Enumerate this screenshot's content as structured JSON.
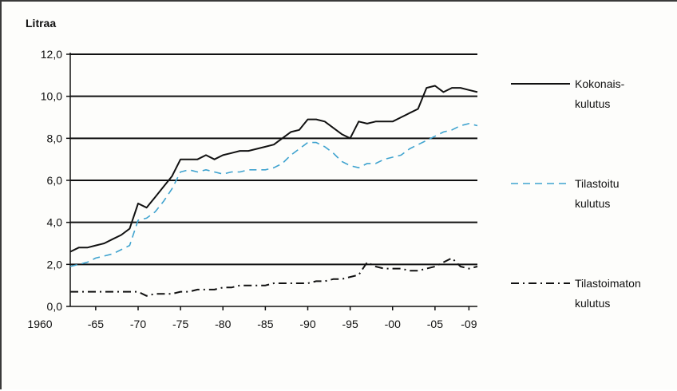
{
  "chart_data": {
    "type": "line",
    "ylabel": "Litraa",
    "ylim": [
      0,
      12
    ],
    "yticks": [
      "0,0",
      "2,0",
      "4,0",
      "6,0",
      "8,0",
      "10,0",
      "12,0"
    ],
    "xlim": [
      1962,
      2010
    ],
    "xticks": [
      {
        "x": 1960,
        "label": "1960"
      },
      {
        "x": 1965,
        "label": "-65"
      },
      {
        "x": 1970,
        "label": "-70"
      },
      {
        "x": 1975,
        "label": "-75"
      },
      {
        "x": 1980,
        "label": "-80"
      },
      {
        "x": 1985,
        "label": "-85"
      },
      {
        "x": 1990,
        "label": "-90"
      },
      {
        "x": 1995,
        "label": "-95"
      },
      {
        "x": 2000,
        "label": "-00"
      },
      {
        "x": 2005,
        "label": "-05"
      },
      {
        "x": 2009,
        "label": "-09"
      }
    ],
    "grid": "horizontal",
    "legend_position": "right",
    "series": [
      {
        "name_lines": [
          "Kokonais-",
          "kulutus"
        ],
        "color": "#111111",
        "dash": "solid",
        "x": [
          1962,
          1963,
          1964,
          1965,
          1966,
          1967,
          1968,
          1969,
          1970,
          1971,
          1972,
          1973,
          1974,
          1975,
          1976,
          1977,
          1978,
          1979,
          1980,
          1981,
          1982,
          1983,
          1984,
          1985,
          1986,
          1987,
          1988,
          1989,
          1990,
          1991,
          1992,
          1993,
          1994,
          1995,
          1996,
          1997,
          1998,
          1999,
          2000,
          2001,
          2002,
          2003,
          2004,
          2005,
          2006,
          2007,
          2008,
          2009,
          2010
        ],
        "y": [
          2.6,
          2.8,
          2.8,
          2.9,
          3.0,
          3.2,
          3.4,
          3.7,
          4.9,
          4.7,
          5.2,
          5.7,
          6.2,
          7.0,
          7.0,
          7.0,
          7.2,
          7.0,
          7.2,
          7.3,
          7.4,
          7.4,
          7.5,
          7.6,
          7.7,
          8.0,
          8.3,
          8.4,
          8.9,
          8.9,
          8.8,
          8.5,
          8.2,
          8.0,
          8.8,
          8.7,
          8.8,
          8.8,
          8.8,
          9.0,
          9.2,
          9.4,
          10.4,
          10.5,
          10.2,
          10.4,
          10.4,
          10.3,
          10.2
        ]
      },
      {
        "name_lines": [
          "Tilastoitu",
          "kulutus"
        ],
        "color": "#3fa3cf",
        "dash": "dashed",
        "x": [
          1962,
          1963,
          1964,
          1965,
          1966,
          1967,
          1968,
          1969,
          1970,
          1971,
          1972,
          1973,
          1974,
          1975,
          1976,
          1977,
          1978,
          1979,
          1980,
          1981,
          1982,
          1983,
          1984,
          1985,
          1986,
          1987,
          1988,
          1989,
          1990,
          1991,
          1992,
          1993,
          1994,
          1995,
          1996,
          1997,
          1998,
          1999,
          2000,
          2001,
          2002,
          2003,
          2004,
          2005,
          2006,
          2007,
          2008,
          2009,
          2010
        ],
        "y": [
          1.9,
          2.0,
          2.1,
          2.3,
          2.4,
          2.5,
          2.7,
          2.9,
          4.1,
          4.2,
          4.5,
          5.0,
          5.6,
          6.4,
          6.5,
          6.4,
          6.5,
          6.4,
          6.3,
          6.4,
          6.4,
          6.5,
          6.5,
          6.5,
          6.6,
          6.8,
          7.2,
          7.5,
          7.8,
          7.8,
          7.6,
          7.3,
          6.9,
          6.7,
          6.6,
          6.8,
          6.8,
          7.0,
          7.1,
          7.2,
          7.5,
          7.7,
          7.9,
          8.1,
          8.3,
          8.4,
          8.6,
          8.7,
          8.6
        ]
      },
      {
        "name_lines": [
          "Tilastoimaton",
          "kulutus"
        ],
        "color": "#111111",
        "dash": "dashdot",
        "x": [
          1962,
          1963,
          1964,
          1965,
          1966,
          1967,
          1968,
          1969,
          1970,
          1971,
          1972,
          1973,
          1974,
          1975,
          1976,
          1977,
          1978,
          1979,
          1980,
          1981,
          1982,
          1983,
          1984,
          1985,
          1986,
          1987,
          1988,
          1989,
          1990,
          1991,
          1992,
          1993,
          1994,
          1995,
          1996,
          1997,
          1998,
          1999,
          2000,
          2001,
          2002,
          2003,
          2004,
          2005,
          2006,
          2007,
          2008,
          2009,
          2010
        ],
        "y": [
          0.7,
          0.7,
          0.7,
          0.7,
          0.7,
          0.7,
          0.7,
          0.7,
          0.7,
          0.5,
          0.6,
          0.6,
          0.6,
          0.7,
          0.7,
          0.8,
          0.8,
          0.8,
          0.9,
          0.9,
          1.0,
          1.0,
          1.0,
          1.0,
          1.1,
          1.1,
          1.1,
          1.1,
          1.1,
          1.2,
          1.2,
          1.3,
          1.3,
          1.4,
          1.5,
          2.1,
          1.9,
          1.8,
          1.8,
          1.8,
          1.7,
          1.7,
          1.8,
          1.9,
          2.1,
          2.3,
          1.9,
          1.8,
          1.9
        ]
      }
    ]
  }
}
